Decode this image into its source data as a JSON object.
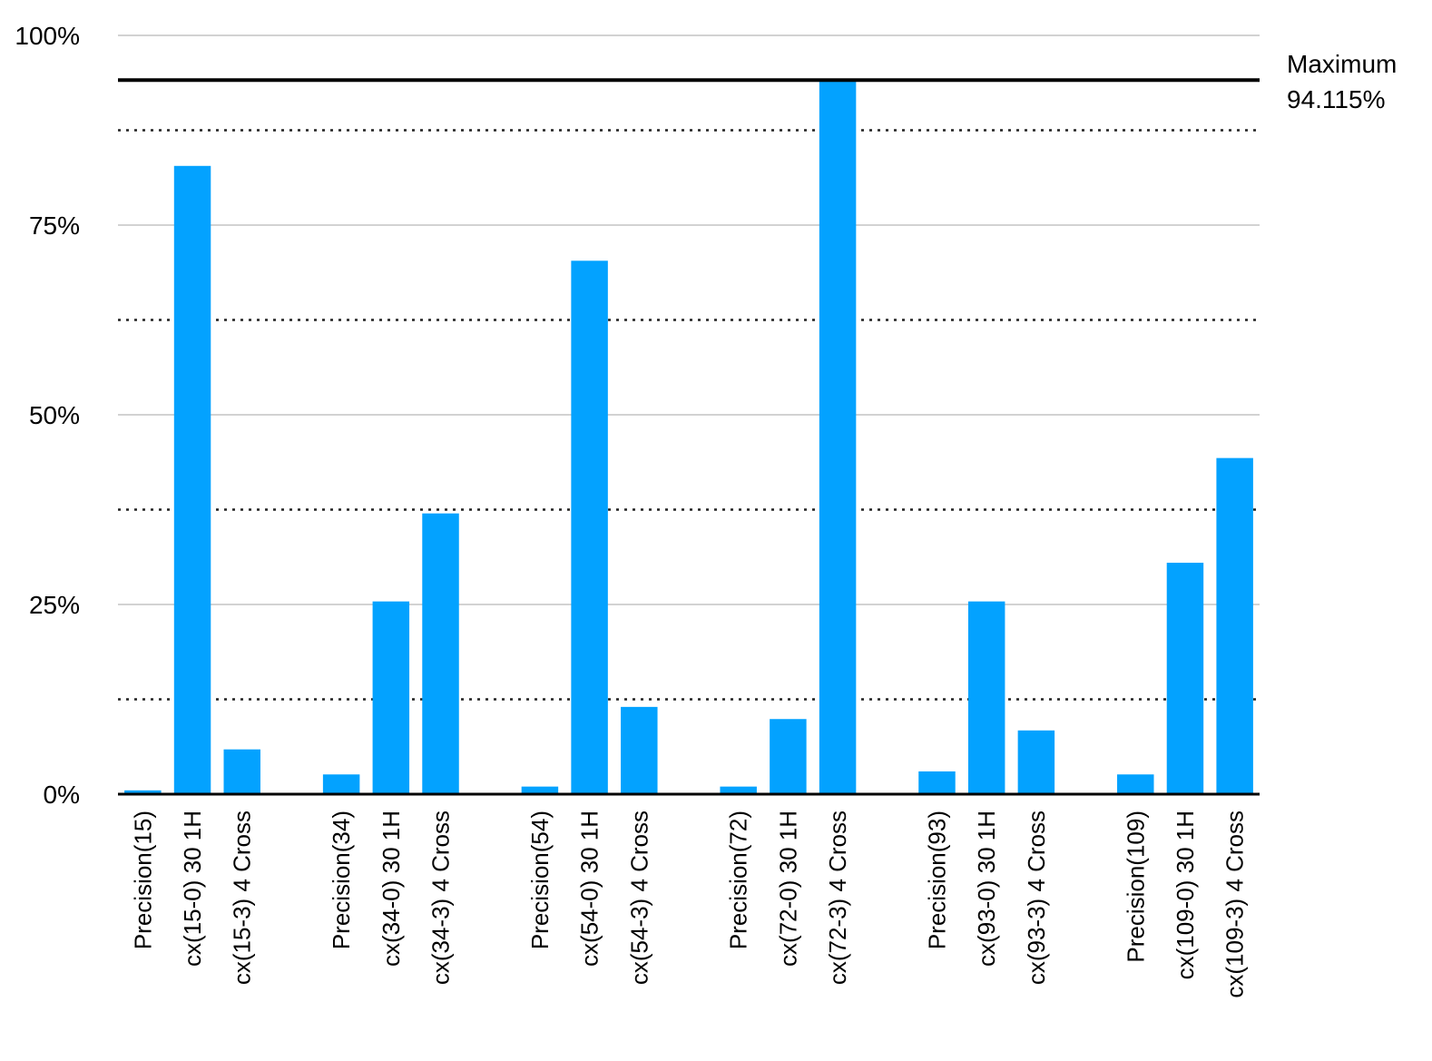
{
  "chart_data": {
    "type": "bar",
    "categories": [
      "Precision(15)",
      "cx(15-0) 30 1H",
      "cx(15-3) 4 Cross",
      "Precision(34)",
      "cx(34-0) 30 1H",
      "cx(34-3) 4 Cross",
      "Precision(54)",
      "cx(54-0) 30 1H",
      "cx(54-3) 4 Cross",
      "Precision(72)",
      "cx(72-0) 30 1H",
      "cx(72-3) 4 Cross",
      "Precision(93)",
      "cx(93-0) 30 1H",
      "cx(93-3) 4 Cross",
      "Precision(109)",
      "cx(109-0) 30 1H",
      "cx(109-3) 4 Cross"
    ],
    "values": [
      0.5,
      82.8,
      5.9,
      2.6,
      25.4,
      37.0,
      1.0,
      70.3,
      11.5,
      1.0,
      9.9,
      94.115,
      3.0,
      25.4,
      8.4,
      2.6,
      30.5,
      44.3
    ],
    "color": "#03a2ff",
    "ylim": [
      0,
      100
    ],
    "yticks": [
      {
        "value": 0,
        "label": "0%"
      },
      {
        "value": 25,
        "label": "25%"
      },
      {
        "value": 50,
        "label": "50%"
      },
      {
        "value": 75,
        "label": "75%"
      },
      {
        "value": 100,
        "label": "100%"
      }
    ],
    "minor_yticks": [
      12.5,
      37.5,
      62.5,
      87.5
    ],
    "grid": true,
    "annotation": {
      "label": "Maximum",
      "value": 94.115,
      "value_label": "94.115%"
    }
  }
}
